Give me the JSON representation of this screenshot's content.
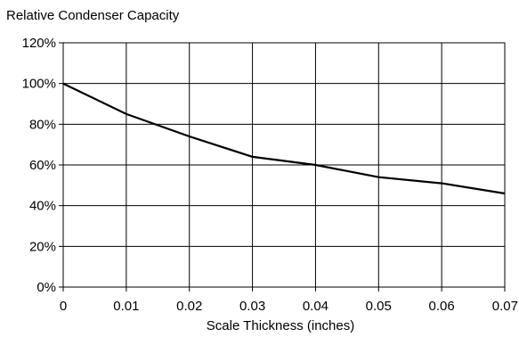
{
  "chart_data": {
    "type": "line",
    "title": "Relative Condenser Capacity",
    "xlabel": "Scale Thickness (inches)",
    "ylabel": "",
    "xlim": [
      0,
      0.07
    ],
    "ylim": [
      0,
      120
    ],
    "x_ticks": [
      "0",
      "0.01",
      "0.02",
      "0.03",
      "0.04",
      "0.05",
      "0.06",
      "0.07"
    ],
    "y_ticks": [
      "0%",
      "20%",
      "40%",
      "60%",
      "80%",
      "100%",
      "120%"
    ],
    "grid": true,
    "legend": "none",
    "series": [
      {
        "x": [
          0,
          0.01,
          0.02,
          0.03,
          0.04,
          0.05,
          0.06,
          0.07
        ],
        "y": [
          100,
          85,
          74,
          64,
          60,
          54,
          51,
          46
        ],
        "color": "#000000"
      }
    ]
  }
}
